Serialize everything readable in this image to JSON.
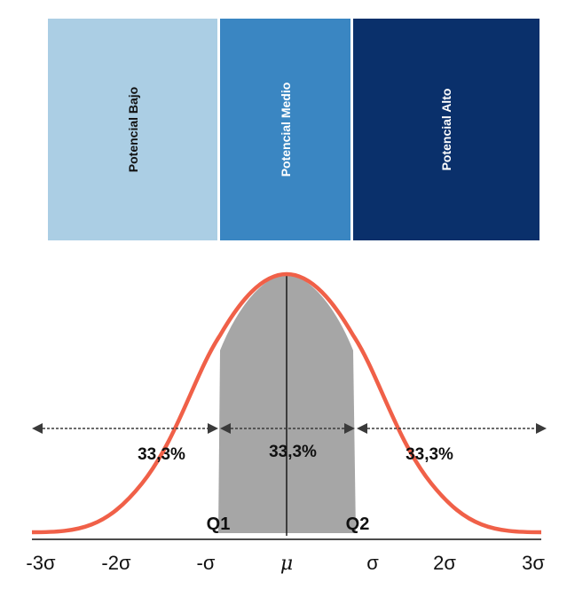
{
  "bands": [
    {
      "label": "Potencial Bajo",
      "color": "#abcee4",
      "text_color": "#111111"
    },
    {
      "label": "Potencial Medio",
      "color": "#3a86c2",
      "text_color": "#ffffff"
    },
    {
      "label": "Potencial Alto",
      "color": "#0a306b",
      "text_color": "#ffffff"
    }
  ],
  "curve": {
    "color": "#f06048",
    "fill_color": "#a6a6a6"
  },
  "percentages": [
    "33,3%",
    "33,3%",
    "33,3%"
  ],
  "quartiles": [
    "Q1",
    "Q2"
  ],
  "axis_ticks": [
    "-3σ",
    "-2σ",
    "-σ",
    "μ",
    "σ",
    "2σ",
    "3σ"
  ]
}
